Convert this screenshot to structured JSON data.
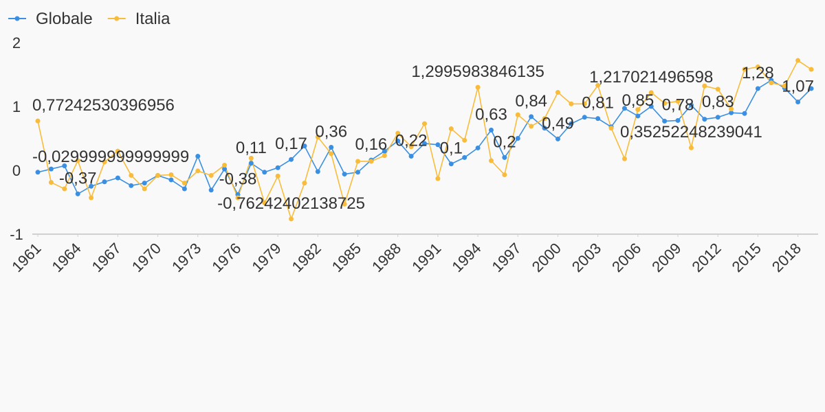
{
  "chart_data": {
    "type": "line",
    "x": [
      1961,
      1962,
      1963,
      1964,
      1965,
      1966,
      1967,
      1968,
      1969,
      1970,
      1971,
      1972,
      1973,
      1974,
      1975,
      1976,
      1977,
      1978,
      1979,
      1980,
      1981,
      1982,
      1983,
      1984,
      1985,
      1986,
      1987,
      1988,
      1989,
      1990,
      1991,
      1992,
      1993,
      1994,
      1995,
      1996,
      1997,
      1998,
      1999,
      2000,
      2001,
      2002,
      2003,
      2004,
      2005,
      2006,
      2007,
      2008,
      2009,
      2010,
      2011,
      2012,
      2013,
      2014,
      2015,
      2016,
      2017,
      2018,
      2019
    ],
    "xlim": [
      1961,
      2019
    ],
    "xticks": [
      1961,
      1964,
      1967,
      1970,
      1973,
      1976,
      1979,
      1982,
      1985,
      1988,
      1991,
      1994,
      1997,
      2000,
      2003,
      2006,
      2009,
      2012,
      2015,
      2018
    ],
    "ylim": [
      -1,
      2
    ],
    "yticks": [
      -1,
      0,
      1,
      2
    ],
    "legend": "top-left",
    "series": [
      {
        "name": "Globale",
        "color": "#3b8fe2",
        "values": [
          -0.029999999999999,
          0.02,
          0.07,
          -0.37,
          -0.25,
          -0.18,
          -0.12,
          -0.24,
          -0.2,
          -0.08,
          -0.15,
          -0.29,
          0.22,
          -0.31,
          0.02,
          -0.38,
          0.11,
          -0.03,
          0.04,
          0.17,
          0.38,
          -0.02,
          0.36,
          -0.06,
          -0.03,
          0.16,
          0.3,
          0.46,
          0.22,
          0.42,
          0.4,
          0.1,
          0.2,
          0.35,
          0.63,
          0.2,
          0.5,
          0.84,
          0.66,
          0.49,
          0.73,
          0.83,
          0.81,
          0.68,
          0.97,
          0.85,
          1.0,
          0.77,
          0.78,
          1.02,
          0.8,
          0.83,
          0.9,
          0.89,
          1.28,
          1.41,
          1.29,
          1.07,
          1.28
        ],
        "value_labels": [
          "-0,029999999999999",
          null,
          null,
          "-0,37",
          null,
          null,
          null,
          null,
          null,
          null,
          null,
          null,
          null,
          null,
          null,
          "-0,38",
          "0,11",
          null,
          null,
          "0,17",
          null,
          null,
          "0,36",
          null,
          null,
          "0,16",
          null,
          null,
          "0,22",
          null,
          null,
          "0,1",
          null,
          null,
          "0,63",
          "0,2",
          null,
          "0,84",
          null,
          "0,49",
          null,
          null,
          "0,81",
          null,
          null,
          "0,85",
          null,
          null,
          "0,78",
          null,
          null,
          "0,83",
          null,
          null,
          "1,28",
          null,
          null,
          "1,07",
          null
        ]
      },
      {
        "name": "Italia",
        "color": "#f9bc3a",
        "values": [
          0.77242530396956,
          -0.19,
          -0.29,
          0.15,
          -0.43,
          0.13,
          0.3,
          -0.08,
          -0.29,
          -0.08,
          -0.07,
          -0.2,
          -0.01,
          -0.08,
          0.08,
          -0.43,
          0.19,
          -0.51,
          -0.09,
          -0.76242402138725,
          -0.2,
          0.52,
          0.26,
          -0.53,
          0.14,
          0.14,
          0.23,
          0.58,
          0.37,
          0.73,
          -0.13,
          0.65,
          0.47,
          1.2995983846135,
          0.15,
          -0.07,
          0.87,
          0.69,
          0.81,
          1.22,
          1.04,
          1.04,
          1.33,
          0.66,
          0.18,
          0.95,
          1.217021496598,
          1.05,
          1.08,
          0.35252248239041,
          1.32,
          1.27,
          0.96,
          1.58,
          1.62,
          1.37,
          1.32,
          1.72,
          1.58
        ],
        "value_labels": [
          "0,77242530396956",
          null,
          null,
          null,
          null,
          null,
          null,
          null,
          null,
          null,
          null,
          null,
          null,
          null,
          null,
          null,
          null,
          null,
          null,
          "-0,76242402138725",
          null,
          null,
          null,
          null,
          null,
          null,
          null,
          null,
          null,
          null,
          null,
          null,
          null,
          "1,2995983846135",
          null,
          null,
          null,
          null,
          null,
          null,
          null,
          null,
          null,
          null,
          null,
          null,
          "1,217021496598",
          null,
          null,
          "0,35252248239041",
          null,
          null,
          null,
          null,
          null,
          null,
          null,
          null,
          null
        ]
      }
    ]
  }
}
